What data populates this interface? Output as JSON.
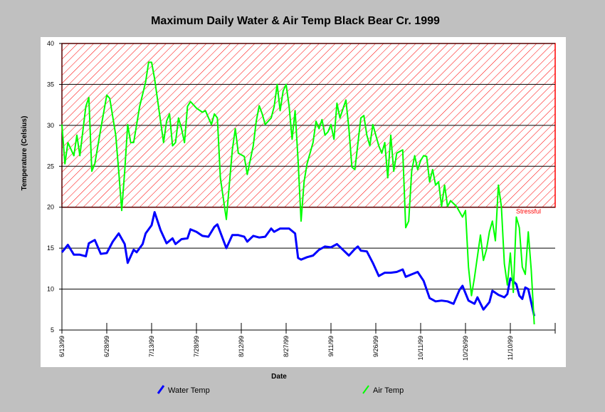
{
  "chart_data": {
    "type": "line",
    "title": "Maximum Daily Water & Air Temp Black Bear Cr. 1999",
    "x_label": "Date",
    "y_label": "Temperature (Celsius)",
    "ylim": [
      5,
      40
    ],
    "yticks": [
      5,
      10,
      15,
      20,
      25,
      30,
      35,
      40
    ],
    "xlim": [
      "6/13/99",
      "11/25/99"
    ],
    "xticks": [
      "6/13/99",
      "6/28/99",
      "7/13/99",
      "7/28/99",
      "8/12/99",
      "8/27/99",
      "9/11/99",
      "9/26/99",
      "10/11/99",
      "10/26/99",
      "11/10/99"
    ],
    "grid": true,
    "bands": [
      {
        "label": "Stressful",
        "range": [
          20,
          40
        ],
        "color": "#ff0000"
      }
    ],
    "series": [
      {
        "name": "Water Temp",
        "color": "#0000ff",
        "x": [
          "6/13/99",
          "6/15/99",
          "6/17/99",
          "6/19/99",
          "6/21/99",
          "6/22/99",
          "6/24/99",
          "6/26/99",
          "6/28/99",
          "6/30/99",
          "7/2/99",
          "7/4/99",
          "7/5/99",
          "7/7/99",
          "7/8/99",
          "7/10/99",
          "7/11/99",
          "7/13/99",
          "7/14/99",
          "7/16/99",
          "7/18/99",
          "7/20/99",
          "7/21/99",
          "7/23/99",
          "7/25/99",
          "7/26/99",
          "7/28/99",
          "7/30/99",
          "8/1/99",
          "8/3/99",
          "8/4/99",
          "8/7/99",
          "8/9/99",
          "8/11/99",
          "8/13/99",
          "8/14/99",
          "8/16/99",
          "8/18/99",
          "8/20/99",
          "8/22/99",
          "8/23/99",
          "8/25/99",
          "8/28/99",
          "8/30/99",
          "8/31/99",
          "9/1/99",
          "9/3/99",
          "9/5/99",
          "9/7/99",
          "9/9/99",
          "9/11/99",
          "9/13/99",
          "9/15/99",
          "9/17/99",
          "9/19/99",
          "9/20/99",
          "9/21/99",
          "9/23/99",
          "9/25/99",
          "9/27/99",
          "9/29/99",
          "10/1/99",
          "10/3/99",
          "10/5/99",
          "10/6/99",
          "10/8/99",
          "10/10/99",
          "10/12/99",
          "10/14/99",
          "10/16/99",
          "10/18/99",
          "10/20/99",
          "10/22/99",
          "10/24/99",
          "10/25/99",
          "10/27/99",
          "10/29/99",
          "10/30/99",
          "11/1/99",
          "11/3/99",
          "11/4/99",
          "11/6/99",
          "11/8/99",
          "11/9/99",
          "11/10/99",
          "11/12/99",
          "11/13/99",
          "11/14/99",
          "11/15/99",
          "11/16/99",
          "11/18/99"
        ],
        "values": [
          14.5,
          15.4,
          14.2,
          14.2,
          14.0,
          15.6,
          16.0,
          14.3,
          14.4,
          15.8,
          16.8,
          15.5,
          13.2,
          14.8,
          14.5,
          15.5,
          16.8,
          17.8,
          19.4,
          17.2,
          15.6,
          16.2,
          15.5,
          16.1,
          16.2,
          17.3,
          17.0,
          16.5,
          16.4,
          17.6,
          17.9,
          15.0,
          16.6,
          16.6,
          16.4,
          15.8,
          16.5,
          16.3,
          16.4,
          17.4,
          17.0,
          17.4,
          17.4,
          16.8,
          13.8,
          13.6,
          13.9,
          14.1,
          14.8,
          15.2,
          15.1,
          15.5,
          14.8,
          14.1,
          14.9,
          15.2,
          14.7,
          14.6,
          13.2,
          11.6,
          12.0,
          12.0,
          12.1,
          12.4,
          11.5,
          11.8,
          12.1,
          11.0,
          8.9,
          8.5,
          8.6,
          8.5,
          8.2,
          9.9,
          10.4,
          8.6,
          8.2,
          9.0,
          7.5,
          8.4,
          9.8,
          9.3,
          9.0,
          9.4,
          11.3,
          10.6,
          9.2,
          8.8,
          10.2,
          10.0,
          6.7
        ]
      },
      {
        "name": "Air Temp",
        "color": "#00ff00",
        "x": [
          "6/13/99",
          "6/14/99",
          "6/15/99",
          "6/17/99",
          "6/18/99",
          "6/19/99",
          "6/21/99",
          "6/22/99",
          "6/23/99",
          "6/24/99",
          "6/26/99",
          "6/28/99",
          "6/29/99",
          "7/1/99",
          "7/2/99",
          "7/3/99",
          "7/4/99",
          "7/5/99",
          "7/6/99",
          "7/7/99",
          "7/9/99",
          "7/11/99",
          "7/12/99",
          "7/13/99",
          "7/14/99",
          "7/16/99",
          "7/17/99",
          "7/18/99",
          "7/19/99",
          "7/20/99",
          "7/21/99",
          "7/22/99",
          "7/23/99",
          "7/24/99",
          "7/25/99",
          "7/26/99",
          "7/28/99",
          "7/30/99",
          "7/31/99",
          "8/2/99",
          "8/3/99",
          "8/4/99",
          "8/5/99",
          "8/7/99",
          "8/9/99",
          "8/10/99",
          "8/11/99",
          "8/13/99",
          "8/14/99",
          "8/16/99",
          "8/17/99",
          "8/18/99",
          "8/19/99",
          "8/20/99",
          "8/22/99",
          "8/23/99",
          "8/24/99",
          "8/25/99",
          "8/26/99",
          "8/27/99",
          "8/28/99",
          "8/29/99",
          "8/30/99",
          "8/31/99",
          "9/1/99",
          "9/2/99",
          "9/3/99",
          "9/5/99",
          "9/6/99",
          "9/7/99",
          "9/8/99",
          "9/9/99",
          "9/10/99",
          "9/11/99",
          "9/12/99",
          "9/13/99",
          "9/14/99",
          "9/16/99",
          "9/17/99",
          "9/18/99",
          "9/19/99",
          "9/21/99",
          "9/22/99",
          "9/23/99",
          "9/24/99",
          "9/25/99",
          "9/27/99",
          "9/28/99",
          "9/29/99",
          "9/30/99",
          "10/1/99",
          "10/2/99",
          "10/3/99",
          "10/5/99",
          "10/6/99",
          "10/7/99",
          "10/8/99",
          "10/9/99",
          "10/10/99",
          "10/11/99",
          "10/12/99",
          "10/13/99",
          "10/14/99",
          "10/15/99",
          "10/16/99",
          "10/17/99",
          "10/18/99",
          "10/19/99",
          "10/20/99",
          "10/21/99",
          "10/23/99",
          "10/25/99",
          "10/26/99",
          "10/27/99",
          "10/28/99",
          "10/29/99",
          "10/30/99",
          "10/31/99",
          "11/1/99",
          "11/2/99",
          "11/3/99",
          "11/4/99",
          "11/5/99",
          "11/6/99",
          "11/7/99",
          "11/8/99",
          "11/9/99",
          "11/10/99",
          "11/11/99",
          "11/12/99",
          "11/13/99",
          "11/14/99",
          "11/15/99",
          "11/16/99",
          "11/17/99",
          "11/18/99"
        ],
        "values": [
          30.1,
          25.3,
          27.9,
          26.3,
          28.8,
          26.3,
          32.3,
          33.4,
          24.4,
          25.3,
          29.6,
          33.7,
          33.3,
          28.8,
          24.4,
          19.6,
          24.4,
          30.1,
          27.9,
          27.9,
          32.3,
          35.3,
          37.7,
          37.7,
          35.7,
          30.5,
          27.9,
          30.5,
          31.4,
          27.5,
          27.9,
          30.9,
          29.6,
          27.9,
          32.3,
          32.9,
          32.1,
          31.6,
          31.8,
          30.1,
          31.4,
          30.9,
          23.6,
          18.5,
          27,
          29.6,
          26.6,
          26.2,
          24,
          27.5,
          30.5,
          32.4,
          31.4,
          30.1,
          30.9,
          32.3,
          35,
          31.8,
          34.2,
          35,
          32.3,
          28.3,
          31.8,
          25.7,
          18.3,
          23.1,
          25.3,
          27.9,
          30.5,
          29.6,
          30.7,
          28.8,
          29.2,
          30.1,
          28.3,
          32.7,
          30.9,
          33.1,
          29.6,
          24.9,
          24.6,
          30.9,
          31.2,
          28.8,
          27.5,
          30.1,
          27.5,
          26.6,
          27.9,
          23.6,
          28.8,
          24.4,
          26.6,
          27,
          17.5,
          18.3,
          24.4,
          26.3,
          24.6,
          25.7,
          26.3,
          26.2,
          23.1,
          24.6,
          22.7,
          23.1,
          20.1,
          22.7,
          20.1,
          20.8,
          20.1,
          18.8,
          19.6,
          12.7,
          9.2,
          11.4,
          14,
          16.6,
          13.5,
          14.8,
          17,
          18.3,
          15.9,
          22.7,
          20.1,
          13.1,
          10.5,
          14.4,
          9.6,
          18.8,
          17.5,
          12.7,
          11.8,
          17,
          12.3,
          5.7
        ]
      }
    ]
  }
}
